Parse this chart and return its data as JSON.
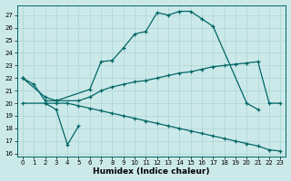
{
  "xlabel": "Humidex (Indice chaleur)",
  "bg_color": "#cce9e9",
  "grid_color": "#aad4d4",
  "line_color": "#006666",
  "xlim": [
    -0.5,
    23.5
  ],
  "ylim": [
    15.8,
    27.8
  ],
  "yticks": [
    16,
    17,
    18,
    19,
    20,
    21,
    22,
    23,
    24,
    25,
    26,
    27
  ],
  "xticks": [
    0,
    1,
    2,
    3,
    4,
    5,
    6,
    7,
    8,
    9,
    10,
    11,
    12,
    13,
    14,
    15,
    16,
    17,
    18,
    19,
    20,
    21,
    22,
    23
  ],
  "curve1_x": [
    0,
    1,
    2,
    3,
    6,
    7,
    8,
    9,
    10,
    11,
    12,
    13,
    14,
    15,
    16,
    17,
    20,
    21
  ],
  "curve1_y": [
    22.0,
    21.5,
    20.2,
    20.2,
    21.1,
    23.3,
    23.4,
    24.4,
    25.5,
    25.7,
    27.2,
    27.0,
    27.3,
    27.3,
    26.7,
    26.1,
    20.0,
    19.5
  ],
  "curve2_x": [
    0,
    2,
    3,
    5,
    6,
    7,
    8,
    9,
    10,
    11,
    12,
    13,
    14,
    15,
    16,
    17,
    18,
    19,
    20,
    21,
    22,
    23
  ],
  "curve2_y": [
    22.0,
    20.5,
    20.2,
    20.2,
    20.5,
    21.0,
    21.3,
    21.5,
    21.7,
    21.8,
    22.0,
    22.2,
    22.4,
    22.5,
    22.7,
    22.9,
    23.0,
    23.1,
    23.2,
    23.3,
    20.0,
    20.0
  ],
  "curve3_x": [
    2,
    3,
    4,
    5
  ],
  "curve3_y": [
    20.0,
    19.5,
    16.7,
    18.2
  ],
  "curve4_x": [
    0,
    2,
    3,
    4,
    5,
    6,
    7,
    8,
    9,
    10,
    11,
    12,
    13,
    14,
    15,
    16,
    17,
    18,
    19,
    20,
    21,
    22,
    23
  ],
  "curve4_y": [
    20.0,
    20.0,
    20.0,
    20.0,
    19.8,
    19.6,
    19.4,
    19.2,
    19.0,
    18.8,
    18.6,
    18.4,
    18.2,
    18.0,
    17.8,
    17.6,
    17.4,
    17.2,
    17.0,
    16.8,
    16.6,
    16.3,
    16.2
  ]
}
